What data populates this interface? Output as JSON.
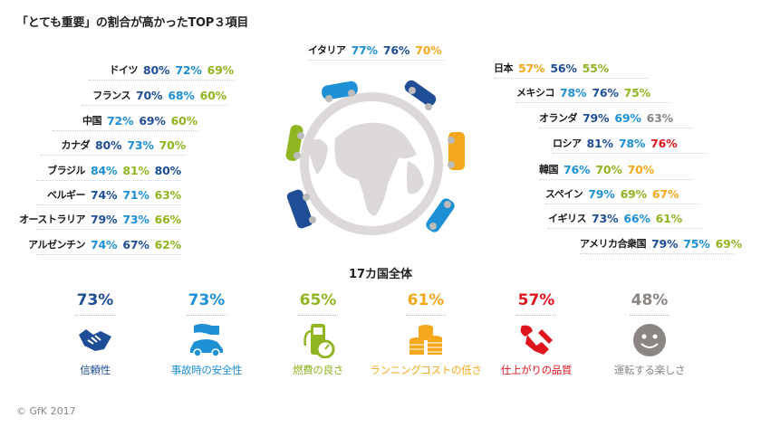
{
  "title": "「とても重要」の割合が高かったTOP３項目",
  "colors": {
    "reliability": "#1f4e96",
    "safety": "#1e90d6",
    "fuel": "#8fb521",
    "running_cost": "#f5a81c",
    "quality": "#e0161f",
    "fun": "#8b8684"
  },
  "countries_left": [
    {
      "name": "ドイツ",
      "values": [
        {
          "v": "80%",
          "c": "dark"
        },
        {
          "v": "72%",
          "c": "light"
        },
        {
          "v": "69%",
          "c": "green"
        }
      ]
    },
    {
      "name": "フランス",
      "values": [
        {
          "v": "70%",
          "c": "dark"
        },
        {
          "v": "68%",
          "c": "light"
        },
        {
          "v": "60%",
          "c": "green"
        }
      ]
    },
    {
      "name": "中国",
      "values": [
        {
          "v": "72%",
          "c": "light"
        },
        {
          "v": "69%",
          "c": "dark"
        },
        {
          "v": "60%",
          "c": "green"
        }
      ]
    },
    {
      "name": "カナダ",
      "values": [
        {
          "v": "80%",
          "c": "dark"
        },
        {
          "v": "73%",
          "c": "light"
        },
        {
          "v": "70%",
          "c": "green"
        }
      ]
    },
    {
      "name": "ブラジル",
      "values": [
        {
          "v": "84%",
          "c": "light"
        },
        {
          "v": "81%",
          "c": "green"
        },
        {
          "v": "80%",
          "c": "dark"
        }
      ]
    },
    {
      "name": "ベルギー",
      "values": [
        {
          "v": "74%",
          "c": "dark"
        },
        {
          "v": "71%",
          "c": "light"
        },
        {
          "v": "63%",
          "c": "green"
        }
      ]
    },
    {
      "name": "オーストラリア",
      "values": [
        {
          "v": "79%",
          "c": "dark"
        },
        {
          "v": "73%",
          "c": "light"
        },
        {
          "v": "66%",
          "c": "green"
        }
      ]
    },
    {
      "name": "アルゼンチン",
      "values": [
        {
          "v": "74%",
          "c": "light"
        },
        {
          "v": "67%",
          "c": "dark"
        },
        {
          "v": "62%",
          "c": "green"
        }
      ]
    }
  ],
  "country_top": {
    "name": "イタリア",
    "values": [
      {
        "v": "77%",
        "c": "light"
      },
      {
        "v": "76%",
        "c": "dark"
      },
      {
        "v": "70%",
        "c": "orange"
      }
    ]
  },
  "countries_right": [
    {
      "name": "日本",
      "values": [
        {
          "v": "57%",
          "c": "orange"
        },
        {
          "v": "56%",
          "c": "dark"
        },
        {
          "v": "55%",
          "c": "green"
        }
      ]
    },
    {
      "name": "メキシコ",
      "values": [
        {
          "v": "78%",
          "c": "light"
        },
        {
          "v": "76%",
          "c": "dark"
        },
        {
          "v": "75%",
          "c": "green"
        }
      ]
    },
    {
      "name": "オランダ",
      "values": [
        {
          "v": "79%",
          "c": "dark"
        },
        {
          "v": "69%",
          "c": "light"
        },
        {
          "v": "63%",
          "c": "gray"
        }
      ]
    },
    {
      "name": "ロシア",
      "values": [
        {
          "v": "81%",
          "c": "dark"
        },
        {
          "v": "78%",
          "c": "light"
        },
        {
          "v": "76%",
          "c": "red"
        }
      ]
    },
    {
      "name": "韓国",
      "values": [
        {
          "v": "76%",
          "c": "light"
        },
        {
          "v": "70%",
          "c": "green"
        },
        {
          "v": "70%",
          "c": "orange"
        }
      ]
    },
    {
      "name": "スペイン",
      "values": [
        {
          "v": "79%",
          "c": "light"
        },
        {
          "v": "69%",
          "c": "green"
        },
        {
          "v": "67%",
          "c": "orange"
        }
      ]
    },
    {
      "name": "イギリス",
      "values": [
        {
          "v": "73%",
          "c": "dark"
        },
        {
          "v": "66%",
          "c": "light"
        },
        {
          "v": "61%",
          "c": "green"
        }
      ]
    },
    {
      "name": "アメリカ合衆国",
      "values": [
        {
          "v": "79%",
          "c": "dark"
        },
        {
          "v": "75%",
          "c": "light"
        },
        {
          "v": "69%",
          "c": "green"
        }
      ]
    }
  ],
  "overall": {
    "title": "17カ国全体",
    "metrics": [
      {
        "value": "73%",
        "label": "信頼性",
        "icon": "handshake-icon",
        "c": "dark"
      },
      {
        "value": "73%",
        "label": "事故時の安全性",
        "icon": "car-protect-icon",
        "c": "light"
      },
      {
        "value": "65%",
        "label": "燃費の良さ",
        "icon": "fuel-pump-icon",
        "c": "green"
      },
      {
        "value": "61%",
        "label": "ランニングコストの低さ",
        "icon": "coins-icon",
        "c": "orange"
      },
      {
        "value": "57%",
        "label": "仕上がりの品質",
        "icon": "wrench-handshake-icon",
        "c": "red"
      },
      {
        "value": "48%",
        "label": "運転する楽しさ",
        "icon": "smiley-icon",
        "c": "gray"
      }
    ]
  },
  "copyright": "© GfK 2017"
}
